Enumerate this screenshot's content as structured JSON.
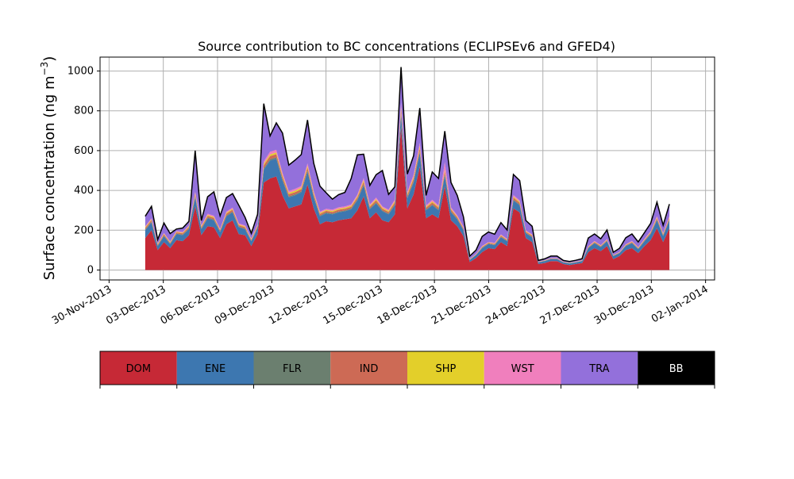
{
  "chart_data": {
    "type": "area",
    "stacked": true,
    "title": "Source contribution to BC concentrations (ECLIPSEv6 and GFED4)",
    "ylabel_main": "Surface concentration (ng m",
    "ylabel_sup": "−3",
    "ylabel_close": ")",
    "xlabel": "",
    "grid": true,
    "x_start": "2013-12-02",
    "x_end": "2013-12-31",
    "xlim": [
      "2013-11-29T12:00",
      "2014-01-02T12:00"
    ],
    "ylim": [
      -50,
      1070
    ],
    "yticks": [
      0,
      200,
      400,
      600,
      800,
      1000
    ],
    "xticks": [
      {
        "date": "2013-11-30",
        "label": "30-Nov-2013"
      },
      {
        "date": "2013-12-03",
        "label": "03-Dec-2013"
      },
      {
        "date": "2013-12-06",
        "label": "06-Dec-2013"
      },
      {
        "date": "2013-12-09",
        "label": "09-Dec-2013"
      },
      {
        "date": "2013-12-12",
        "label": "12-Dec-2013"
      },
      {
        "date": "2013-12-15",
        "label": "15-Dec-2013"
      },
      {
        "date": "2013-12-18",
        "label": "18-Dec-2013"
      },
      {
        "date": "2013-12-21",
        "label": "21-Dec-2013"
      },
      {
        "date": "2013-12-24",
        "label": "24-Dec-2013"
      },
      {
        "date": "2013-12-27",
        "label": "27-Dec-2013"
      },
      {
        "date": "2013-12-30",
        "label": "30-Dec-2013"
      },
      {
        "date": "2014-01-02",
        "label": "02-Jan-2014"
      }
    ],
    "total_line_color": "#000000",
    "series": [
      {
        "name": "DOM",
        "color": "#c62936",
        "text_color": "#000000",
        "values": [
          160,
          200,
          100,
          140,
          110,
          150,
          145,
          175,
          320,
          175,
          220,
          215,
          160,
          230,
          250,
          180,
          175,
          120,
          180,
          440,
          460,
          470,
          375,
          310,
          320,
          330,
          430,
          310,
          230,
          245,
          240,
          250,
          255,
          260,
          300,
          370,
          260,
          290,
          250,
          240,
          280,
          720,
          310,
          380,
          520,
          260,
          280,
          260,
          420,
          250,
          220,
          170,
          40,
          60,
          90,
          110,
          105,
          140,
          120,
          310,
          290,
          160,
          140,
          30,
          35,
          45,
          45,
          30,
          25,
          30,
          35,
          90,
          110,
          95,
          120,
          55,
          70,
          100,
          110,
          85,
          120,
          150,
          210,
          140,
          210
        ]
      },
      {
        "name": "ENE",
        "color": "#3d77b0",
        "text_color": "#000000",
        "values": [
          40,
          40,
          20,
          30,
          20,
          30,
          30,
          30,
          45,
          30,
          40,
          35,
          30,
          40,
          40,
          35,
          30,
          25,
          30,
          65,
          90,
          90,
          75,
          55,
          55,
          60,
          65,
          55,
          40,
          40,
          40,
          40,
          40,
          45,
          50,
          55,
          45,
          45,
          45,
          40,
          45,
          60,
          50,
          60,
          70,
          40,
          45,
          40,
          55,
          40,
          35,
          30,
          10,
          15,
          20,
          20,
          20,
          25,
          25,
          40,
          35,
          25,
          25,
          8,
          10,
          10,
          10,
          8,
          8,
          8,
          10,
          20,
          25,
          20,
          25,
          15,
          15,
          20,
          25,
          20,
          25,
          30,
          40,
          30,
          40
        ]
      },
      {
        "name": "FLR",
        "color": "#6b7f6f",
        "text_color": "#000000",
        "values": [
          3,
          3,
          2,
          3,
          2,
          3,
          3,
          3,
          5,
          3,
          4,
          4,
          3,
          4,
          4,
          3,
          3,
          2,
          3,
          6,
          7,
          7,
          6,
          5,
          5,
          5,
          6,
          5,
          4,
          4,
          4,
          4,
          4,
          4,
          5,
          6,
          4,
          5,
          4,
          4,
          5,
          8,
          5,
          6,
          7,
          4,
          4,
          4,
          6,
          4,
          3,
          3,
          1,
          1,
          2,
          2,
          2,
          2,
          2,
          4,
          4,
          2,
          2,
          1,
          1,
          1,
          1,
          1,
          1,
          1,
          1,
          2,
          2,
          2,
          2,
          1,
          1,
          2,
          2,
          2,
          2,
          3,
          4,
          3,
          4
        ]
      },
      {
        "name": "IND",
        "color": "#cd6a55",
        "text_color": "#000000",
        "values": [
          8,
          8,
          5,
          6,
          5,
          6,
          6,
          7,
          10,
          7,
          8,
          8,
          6,
          9,
          9,
          7,
          7,
          5,
          7,
          15,
          15,
          15,
          13,
          11,
          11,
          11,
          14,
          11,
          8,
          8,
          8,
          9,
          9,
          9,
          10,
          13,
          9,
          10,
          9,
          8,
          10,
          20,
          11,
          13,
          16,
          9,
          10,
          9,
          14,
          9,
          7,
          6,
          2,
          2,
          4,
          4,
          4,
          5,
          4,
          10,
          9,
          5,
          5,
          1,
          1,
          2,
          2,
          1,
          1,
          1,
          1,
          3,
          4,
          3,
          4,
          2,
          2,
          3,
          4,
          3,
          4,
          5,
          7,
          5,
          7
        ]
      },
      {
        "name": "SHP",
        "color": "#e3cf2a",
        "text_color": "#000000",
        "values": [
          4,
          4,
          3,
          3,
          3,
          3,
          3,
          4,
          6,
          4,
          5,
          5,
          3,
          5,
          5,
          4,
          4,
          3,
          4,
          8,
          9,
          9,
          8,
          7,
          7,
          7,
          9,
          7,
          5,
          5,
          5,
          5,
          5,
          5,
          6,
          8,
          5,
          6,
          5,
          5,
          6,
          12,
          7,
          8,
          10,
          5,
          6,
          5,
          8,
          5,
          4,
          3,
          1,
          1,
          2,
          2,
          2,
          3,
          2,
          5,
          5,
          3,
          3,
          1,
          1,
          1,
          1,
          1,
          1,
          1,
          1,
          2,
          2,
          2,
          2,
          1,
          1,
          2,
          2,
          2,
          2,
          3,
          4,
          3,
          4
        ]
      },
      {
        "name": "WST",
        "color": "#f07fbd",
        "text_color": "#000000",
        "values": [
          5,
          5,
          3,
          4,
          3,
          4,
          4,
          5,
          8,
          5,
          6,
          6,
          4,
          6,
          6,
          5,
          5,
          3,
          5,
          12,
          13,
          13,
          11,
          9,
          9,
          9,
          12,
          9,
          6,
          6,
          6,
          7,
          7,
          7,
          8,
          10,
          7,
          8,
          7,
          6,
          8,
          20,
          9,
          12,
          16,
          7,
          8,
          7,
          40,
          7,
          6,
          5,
          1,
          2,
          3,
          3,
          3,
          4,
          3,
          8,
          7,
          4,
          4,
          1,
          1,
          1,
          1,
          1,
          1,
          1,
          1,
          2,
          3,
          2,
          3,
          1,
          2,
          2,
          3,
          2,
          3,
          4,
          6,
          4,
          6
        ]
      },
      {
        "name": "TRA",
        "color": "#9370db",
        "text_color": "#000000",
        "values": [
          50,
          60,
          20,
          50,
          40,
          10,
          20,
          20,
          206,
          25,
          85,
          120,
          66,
          70,
          70,
          91,
          40,
          26,
          51,
          290,
          80,
          135,
          200,
          130,
          145,
          158,
          218,
          140,
          128,
          80,
          53,
          64,
          70,
          130,
          200,
          120,
          95,
          115,
          180,
          77,
          64,
          180,
          90,
          95,
          175,
          50,
          140,
          135,
          155,
          125,
          100,
          50,
          15,
          19,
          48,
          50,
          44,
          59,
          45,
          103,
          100,
          50,
          41,
          6,
          7,
          10,
          10,
          6,
          6,
          7,
          8,
          42,
          35,
          33,
          45,
          14,
          18,
          33,
          35,
          27,
          32,
          40,
          70,
          40,
          60
        ]
      },
      {
        "name": "BB",
        "color": "#000000",
        "text_color": "#ffffff",
        "values": [
          0,
          0,
          0,
          0,
          0,
          0,
          0,
          0,
          0,
          0,
          0,
          0,
          0,
          0,
          0,
          0,
          0,
          0,
          0,
          0,
          0,
          0,
          0,
          0,
          0,
          0,
          0,
          0,
          0,
          0,
          0,
          0,
          0,
          0,
          0,
          0,
          0,
          0,
          0,
          0,
          0,
          0,
          0,
          0,
          0,
          0,
          0,
          0,
          0,
          0,
          0,
          0,
          0,
          0,
          0,
          0,
          0,
          0,
          0,
          0,
          0,
          0,
          0,
          0,
          0,
          0,
          0,
          0,
          0,
          0,
          0,
          0,
          0,
          0,
          0,
          0,
          0,
          0,
          0,
          0,
          0,
          0,
          0,
          0,
          0
        ]
      }
    ]
  }
}
